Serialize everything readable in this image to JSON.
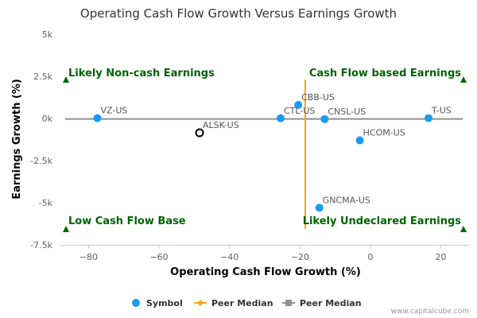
{
  "chart_data": {
    "type": "scatter",
    "title": "Operating Cash Flow Growth Versus Earnings Growth",
    "xlabel": "Operating Cash Flow Growth (%)",
    "ylabel": "Earnings Growth (%)",
    "xlim": [
      -88,
      28
    ],
    "ylim": [
      -7500,
      5000
    ],
    "x_ticks": [
      {
        "value": -80,
        "label": "−80"
      },
      {
        "value": -60,
        "label": "−60"
      },
      {
        "value": -40,
        "label": "−40"
      },
      {
        "value": -20,
        "label": "−20"
      },
      {
        "value": 0,
        "label": "0"
      },
      {
        "value": 20,
        "label": "20"
      }
    ],
    "y_ticks": [
      {
        "value": 5000,
        "label": "5k"
      },
      {
        "value": 2500,
        "label": "2.5k"
      },
      {
        "value": 0,
        "label": "0k"
      },
      {
        "value": -2500,
        "label": "-2.5k"
      },
      {
        "value": -5000,
        "label": "-5k"
      },
      {
        "value": -7500,
        "label": "-7.5k"
      }
    ],
    "points": [
      {
        "label": "VZ-US",
        "x": -77.5,
        "y": 20,
        "highlight": false
      },
      {
        "label": "ALSK-US",
        "x": -48.5,
        "y": -850,
        "highlight": true
      },
      {
        "label": "CBB-US",
        "x": -20.5,
        "y": 800,
        "highlight": false
      },
      {
        "label": "CTL-US",
        "x": -25.5,
        "y": 10,
        "highlight": false
      },
      {
        "label": "CNSL-US",
        "x": -13,
        "y": -40,
        "highlight": false
      },
      {
        "label": "HCOM-US",
        "x": -3,
        "y": -1300,
        "highlight": false
      },
      {
        "label": "T-US",
        "x": 16.5,
        "y": 20,
        "highlight": false
      },
      {
        "label": "GNCMA-US",
        "x": -14.5,
        "y": -5300,
        "highlight": false
      }
    ],
    "peer_median_x": -18.5,
    "peer_median_y": -30,
    "quadrants": {
      "top_left": "Likely Non-cash Earnings",
      "top_right": "Cash Flow based Earnings",
      "bottom_left": "Low Cash Flow Base",
      "bottom_right": "Likely Undeclared Earnings"
    },
    "legend": [
      {
        "name": "Symbol",
        "kind": "dot"
      },
      {
        "name": "Peer Median",
        "kind": "orange-line"
      },
      {
        "name": "Peer Median",
        "kind": "gray-line"
      }
    ],
    "legend_position": "bottom",
    "grid": false,
    "credit": "www.capitalcube.com",
    "colors": {
      "point": "#1a9bf0",
      "highlight_stroke": "#000000",
      "peer_x_line": "#f5a623",
      "peer_y_line": "#909090",
      "quadrant_text": "#006400",
      "arrow": "#006400"
    }
  }
}
